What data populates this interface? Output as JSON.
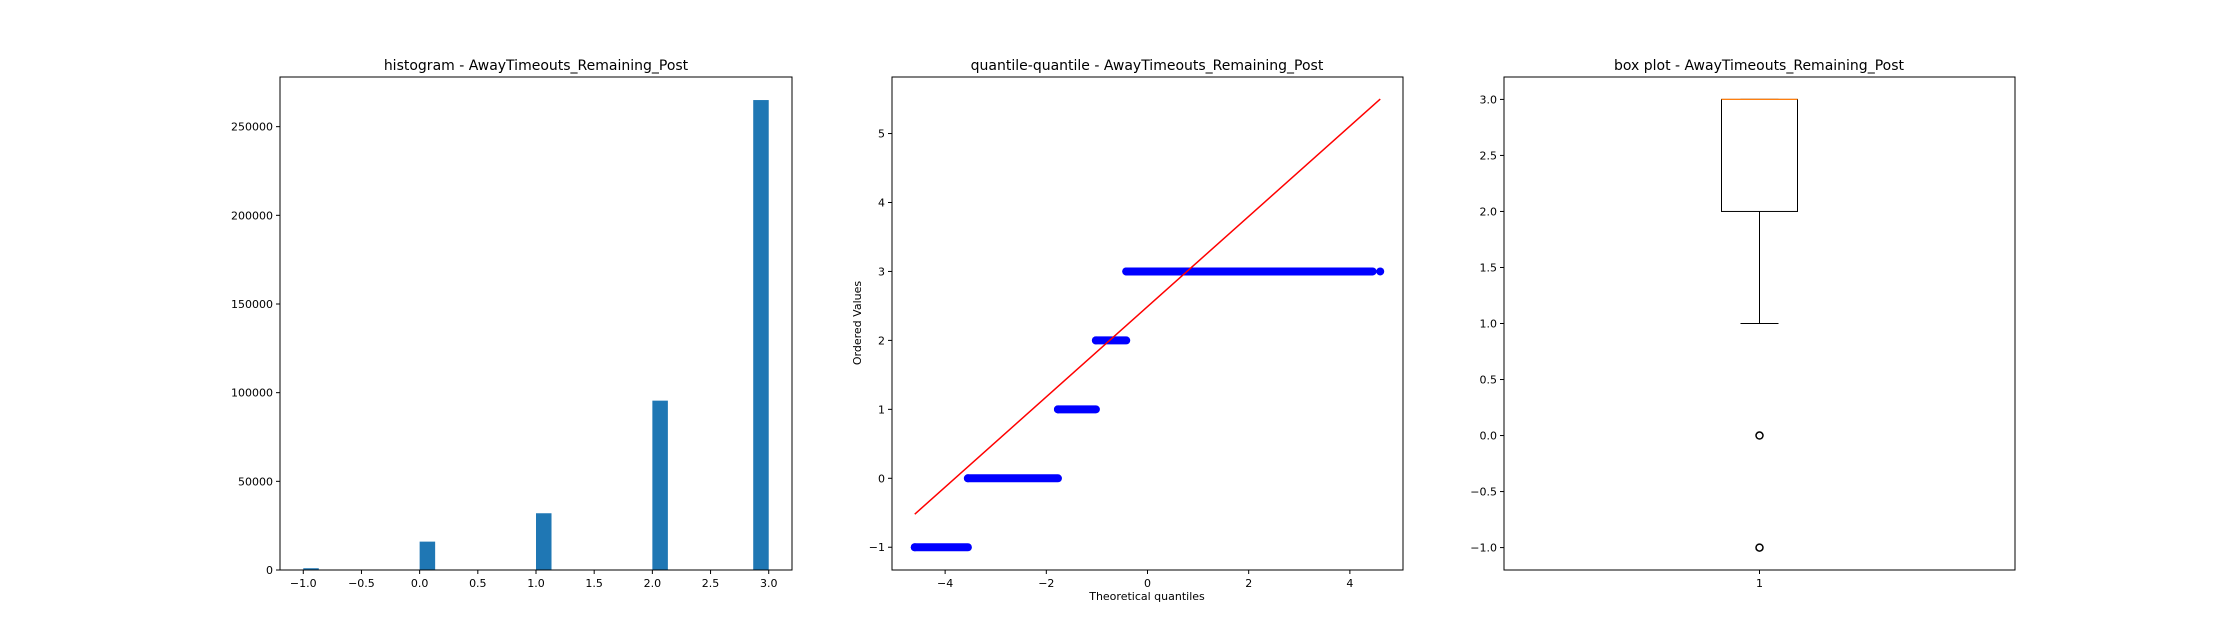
{
  "chart_data": [
    {
      "type": "bar",
      "title": "histogram - AwayTimeouts_Remaining_Post",
      "xlabel": "",
      "ylabel": "",
      "xlim": [
        -1.2,
        3.2
      ],
      "ylim": [
        0,
        278000
      ],
      "xticks": [
        "−1.0",
        "−0.5",
        "0.0",
        "0.5",
        "1.0",
        "1.5",
        "2.0",
        "2.5",
        "3.0"
      ],
      "xtick_values": [
        -1.0,
        -0.5,
        0.0,
        0.5,
        1.0,
        1.5,
        2.0,
        2.5,
        3.0
      ],
      "yticks": [
        "0",
        "50000",
        "100000",
        "150000",
        "200000",
        "250000"
      ],
      "ytick_values": [
        0,
        50000,
        100000,
        150000,
        200000,
        250000
      ],
      "bins": [
        {
          "x0": -1.0,
          "x1": -0.8667,
          "value": 1000
        },
        {
          "x0": 0.0,
          "x1": 0.1333,
          "value": 16000
        },
        {
          "x0": 1.0,
          "x1": 1.1333,
          "value": 32000
        },
        {
          "x0": 2.0,
          "x1": 2.1333,
          "value": 95500
        },
        {
          "x0": 2.8667,
          "x1": 3.0,
          "value": 265000
        }
      ],
      "color": "#1f77b4"
    },
    {
      "type": "scatter",
      "title": "quantile-quantile - AwayTimeouts_Remaining_Post",
      "xlabel": "Theoretical quantiles",
      "ylabel": "Ordered Values",
      "xlim": [
        -5.05,
        5.05
      ],
      "ylim": [
        -1.33,
        5.82
      ],
      "xticks": [
        "−4",
        "−2",
        "0",
        "2",
        "4"
      ],
      "xtick_values": [
        -4,
        -2,
        0,
        2,
        4
      ],
      "yticks": [
        "−1",
        "0",
        "1",
        "2",
        "3",
        "4",
        "5"
      ],
      "ytick_values": [
        -1,
        0,
        1,
        2,
        3,
        4,
        5
      ],
      "segments": [
        {
          "y": -1,
          "x_start": -4.6,
          "x_end": -3.55
        },
        {
          "y": 0,
          "x_start": -3.55,
          "x_end": -1.77
        },
        {
          "y": 1,
          "x_start": -1.77,
          "x_end": -1.02
        },
        {
          "y": 2,
          "x_start": -1.02,
          "x_end": -0.42
        },
        {
          "y": 3,
          "x_start": -0.42,
          "x_end": 4.45
        }
      ],
      "extra_points": [
        {
          "x": 4.6,
          "y": 3
        }
      ],
      "fit_line": {
        "x1": -4.6,
        "y1": -0.52,
        "x2": 4.6,
        "y2": 5.5
      },
      "point_color": "#0000ff",
      "line_color": "#ff0000"
    },
    {
      "type": "box",
      "title": "box plot - AwayTimeouts_Remaining_Post",
      "xlabel": "",
      "ylabel": "",
      "xlim": [
        0.5,
        1.5
      ],
      "ylim": [
        -1.2,
        3.2
      ],
      "xticks": [
        "1"
      ],
      "xtick_values": [
        1
      ],
      "yticks": [
        "−1.0",
        "−0.5",
        "0.0",
        "0.5",
        "1.0",
        "1.5",
        "2.0",
        "2.5",
        "3.0"
      ],
      "ytick_values": [
        -1.0,
        -0.5,
        0.0,
        0.5,
        1.0,
        1.5,
        2.0,
        2.5,
        3.0
      ],
      "q1": 2.0,
      "median": 3.0,
      "q3": 3.0,
      "whisker_low": 1.0,
      "whisker_high": 3.0,
      "outliers": [
        0.0,
        -1.0
      ],
      "median_color": "#ff7f0e"
    }
  ]
}
